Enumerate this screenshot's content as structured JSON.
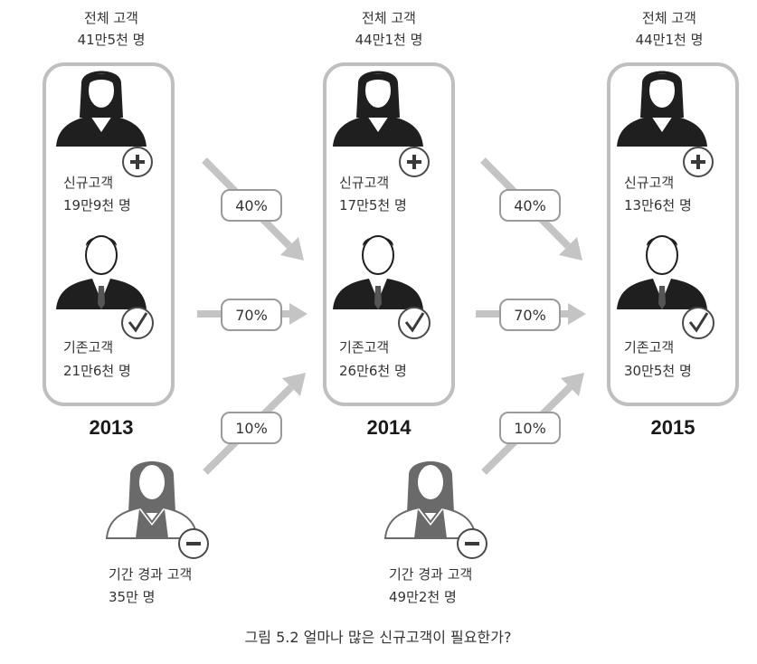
{
  "years": [
    {
      "total_label": "전체 고객",
      "total_value": "41만5천 명",
      "new_label": "신규고객",
      "new_value": "19만9천 명",
      "existing_label": "기존고객",
      "existing_value": "21만6천 명",
      "year": "2013"
    },
    {
      "total_label": "전체 고객",
      "total_value": "44만1천 명",
      "new_label": "신규고객",
      "new_value": "17만5천 명",
      "existing_label": "기존고객",
      "existing_value": "26만6천 명",
      "year": "2014"
    },
    {
      "total_label": "전체 고객",
      "total_value": "44만1천 명",
      "new_label": "신규고객",
      "new_value": "13만6천 명",
      "existing_label": "기존고객",
      "existing_value": "30만5천 명",
      "year": "2015"
    }
  ],
  "transitions": [
    {
      "new_to_existing": "40%",
      "existing_retained": "70%",
      "lapsed_return": "10%"
    },
    {
      "new_to_existing": "40%",
      "existing_retained": "70%",
      "lapsed_return": "10%"
    }
  ],
  "lapsed": [
    {
      "label": "기간 경과 고객",
      "value": "35만 명"
    },
    {
      "label": "기간 경과 고객",
      "value": "49만2천 명"
    }
  ],
  "caption": "그림 5.2 얼마나 많은 신규고객이 필요한가?",
  "icons": {
    "new_customer": "woman-plus-icon",
    "existing_customer": "man-check-icon",
    "lapsed_customer": "woman-minus-icon"
  }
}
